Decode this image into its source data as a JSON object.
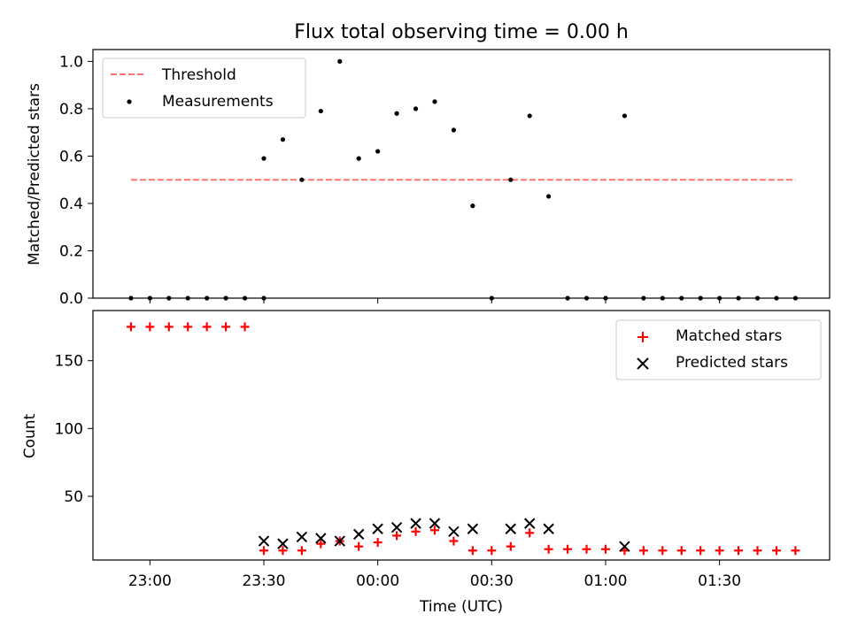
{
  "chart_data": {
    "title": "Flux total observing time = 0.00 h",
    "x_axis": {
      "label": "Time (UTC)",
      "unit": "minutes-of-day",
      "range": [
        "22:45",
        "01:59"
      ],
      "tick_labels": [
        "23:00",
        "23:30",
        "00:00",
        "00:30",
        "01:00",
        "01:30"
      ]
    },
    "panels": [
      {
        "type": "scatter",
        "ylabel": "Matched/Predicted stars",
        "ylim": [
          0,
          1.05
        ],
        "y_ticks": [
          "0.0",
          "0.2",
          "0.4",
          "0.6",
          "0.8",
          "1.0"
        ],
        "legend_position": "top-left",
        "series": [
          {
            "name": "Threshold",
            "kind": "dashed-line",
            "color": "#ff7070",
            "points": [
              [
                "22:55",
                0.5
              ],
              [
                "01:50",
                0.5
              ]
            ]
          },
          {
            "name": "Measurements",
            "kind": "dot",
            "color": "#000000",
            "points": [
              [
                "22:55",
                0
              ],
              [
                "23:00",
                0
              ],
              [
                "23:05",
                0
              ],
              [
                "23:10",
                0
              ],
              [
                "23:15",
                0
              ],
              [
                "23:20",
                0
              ],
              [
                "23:25",
                0
              ],
              [
                "23:30",
                0
              ],
              [
                "23:30",
                0.59
              ],
              [
                "23:35",
                0.67
              ],
              [
                "23:40",
                0.5
              ],
              [
                "23:45",
                0.79
              ],
              [
                "23:50",
                1.0
              ],
              [
                "23:55",
                0.59
              ],
              [
                "00:00",
                0.62
              ],
              [
                "00:05",
                0.78
              ],
              [
                "00:10",
                0.8
              ],
              [
                "00:15",
                0.83
              ],
              [
                "00:20",
                0.71
              ],
              [
                "00:25",
                0.39
              ],
              [
                "00:30",
                0
              ],
              [
                "00:35",
                0.5
              ],
              [
                "00:40",
                0.77
              ],
              [
                "00:45",
                0.43
              ],
              [
                "00:50",
                0
              ],
              [
                "00:55",
                0
              ],
              [
                "01:00",
                0
              ],
              [
                "01:05",
                0.77
              ],
              [
                "01:10",
                0
              ],
              [
                "01:15",
                0
              ],
              [
                "01:20",
                0
              ],
              [
                "01:25",
                0
              ],
              [
                "01:30",
                0
              ],
              [
                "01:35",
                0
              ],
              [
                "01:40",
                0
              ],
              [
                "01:45",
                0
              ],
              [
                "01:50",
                0
              ]
            ]
          }
        ]
      },
      {
        "type": "scatter",
        "ylabel": "Count",
        "ylim": [
          3,
          187
        ],
        "y_ticks": [
          "50",
          "100",
          "150"
        ],
        "legend_position": "top-right",
        "series": [
          {
            "name": "Matched stars",
            "kind": "plus",
            "color": "#ff0000",
            "points": [
              [
                "22:55",
                175
              ],
              [
                "23:00",
                175
              ],
              [
                "23:05",
                175
              ],
              [
                "23:10",
                175
              ],
              [
                "23:15",
                175
              ],
              [
                "23:20",
                175
              ],
              [
                "23:25",
                175
              ],
              [
                "23:30",
                10
              ],
              [
                "23:35",
                10
              ],
              [
                "23:40",
                10
              ],
              [
                "23:45",
                15
              ],
              [
                "23:50",
                17
              ],
              [
                "23:55",
                13
              ],
              [
                "00:00",
                16
              ],
              [
                "00:05",
                21
              ],
              [
                "00:10",
                24
              ],
              [
                "00:15",
                25
              ],
              [
                "00:20",
                17
              ],
              [
                "00:25",
                10
              ],
              [
                "00:30",
                10
              ],
              [
                "00:35",
                13
              ],
              [
                "00:40",
                23
              ],
              [
                "00:45",
                11
              ],
              [
                "00:50",
                11
              ],
              [
                "00:55",
                11
              ],
              [
                "01:00",
                11
              ],
              [
                "01:05",
                10
              ],
              [
                "01:10",
                10
              ],
              [
                "01:15",
                10
              ],
              [
                "01:20",
                10
              ],
              [
                "01:25",
                10
              ],
              [
                "01:30",
                10
              ],
              [
                "01:35",
                10
              ],
              [
                "01:40",
                10
              ],
              [
                "01:45",
                10
              ],
              [
                "01:50",
                10
              ]
            ]
          },
          {
            "name": "Predicted stars",
            "kind": "x",
            "color": "#000000",
            "points": [
              [
                "23:30",
                17
              ],
              [
                "23:35",
                15
              ],
              [
                "23:40",
                20
              ],
              [
                "23:45",
                19
              ],
              [
                "23:50",
                17
              ],
              [
                "23:55",
                22
              ],
              [
                "00:00",
                26
              ],
              [
                "00:05",
                27
              ],
              [
                "00:10",
                30
              ],
              [
                "00:15",
                30
              ],
              [
                "00:20",
                24
              ],
              [
                "00:25",
                26
              ],
              [
                "00:35",
                26
              ],
              [
                "00:40",
                30
              ],
              [
                "00:45",
                26
              ],
              [
                "01:05",
                13
              ]
            ]
          }
        ]
      }
    ]
  }
}
